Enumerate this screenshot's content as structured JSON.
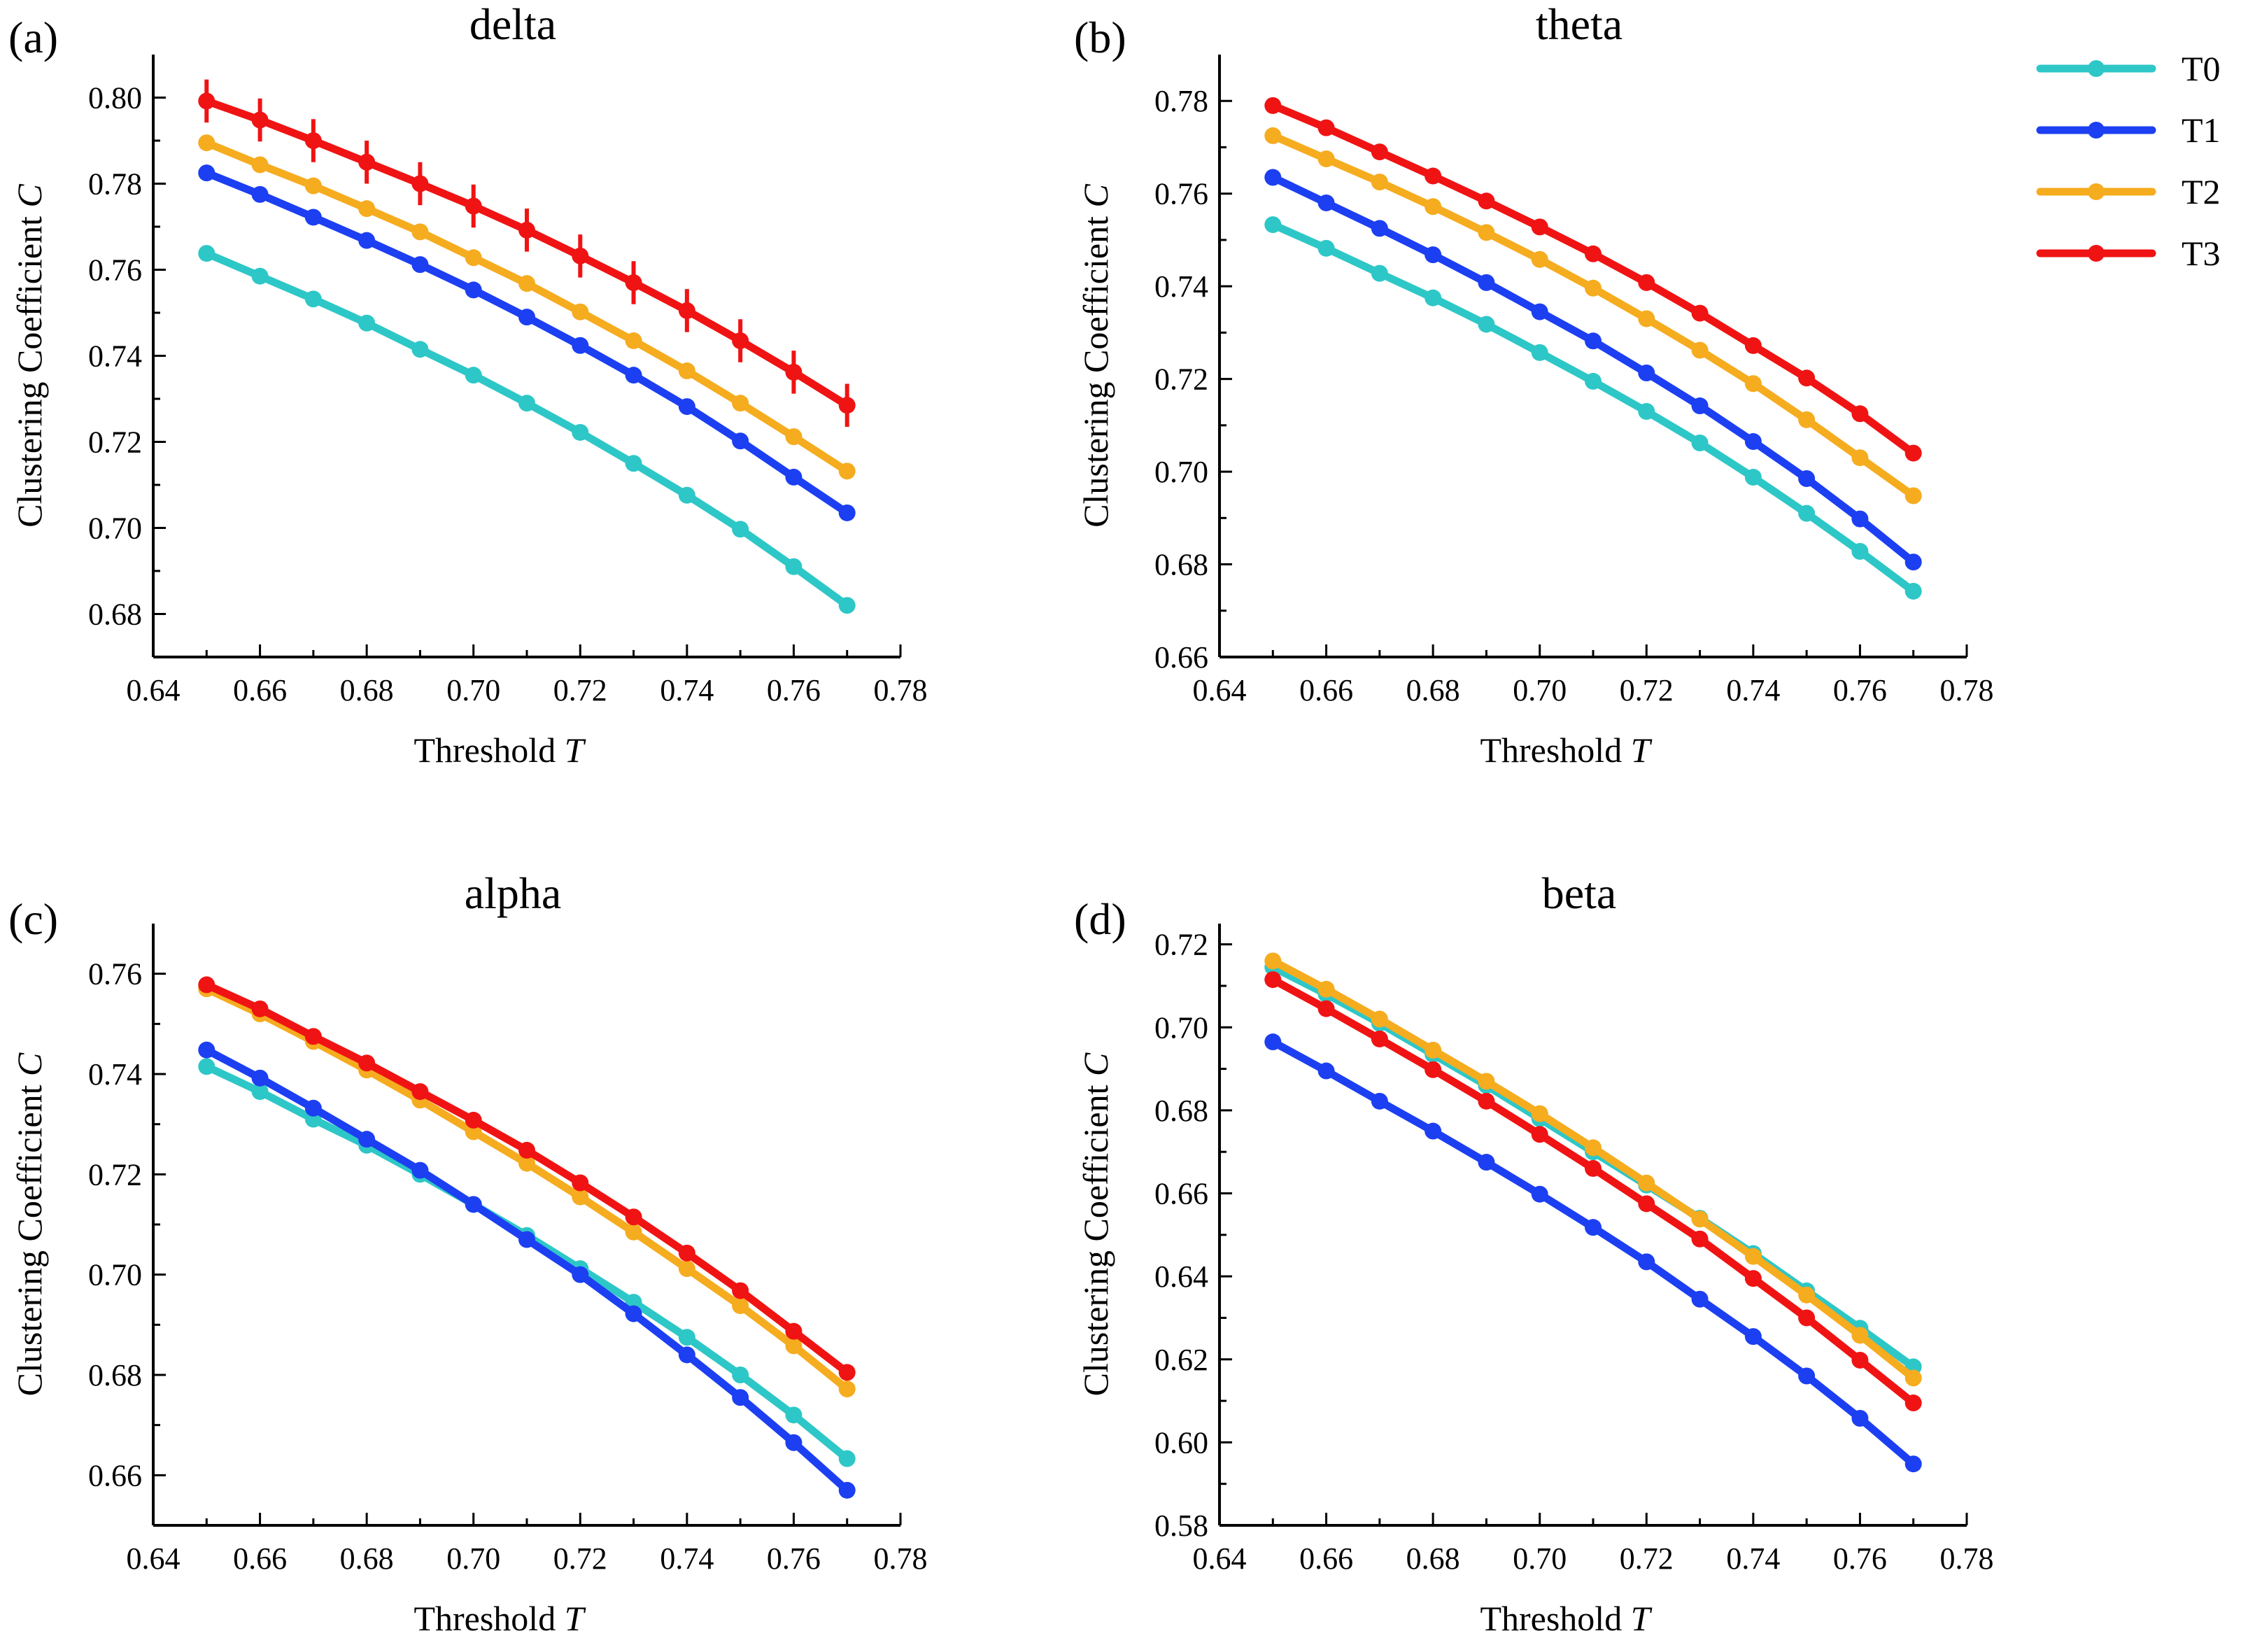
{
  "legend": {
    "position": "top-right",
    "entries": [
      {
        "name": "T0",
        "color": "#2ec7c7"
      },
      {
        "name": "T1",
        "color": "#1c3ff2"
      },
      {
        "name": "T2",
        "color": "#f5ac1f"
      },
      {
        "name": "T3",
        "color": "#f01313"
      }
    ]
  },
  "chart_data": [
    {
      "type": "line",
      "panel_label": "(a)",
      "title": "delta",
      "xlabel": "Threshold",
      "xlabel_var": "T",
      "ylabel": "Clustering Coefficient",
      "ylabel_var": "C",
      "xlim": [
        0.64,
        0.78
      ],
      "ylim": [
        0.67,
        0.81
      ],
      "xticks": [
        "0.64",
        "0.66",
        "0.68",
        "0.70",
        "0.72",
        "0.74",
        "0.76",
        "0.78"
      ],
      "yticks": [
        "0.68",
        "0.70",
        "0.72",
        "0.74",
        "0.76",
        "0.78",
        "0.80"
      ],
      "x": [
        0.65,
        0.66,
        0.67,
        0.68,
        0.69,
        0.7,
        0.71,
        0.72,
        0.73,
        0.74,
        0.75,
        0.76,
        0.77
      ],
      "series": [
        {
          "name": "T0",
          "values": [
            0.7638,
            0.7585,
            0.7532,
            0.7476,
            0.7415,
            0.7355,
            0.729,
            0.7222,
            0.715,
            0.7076,
            0.6997,
            0.691,
            0.682
          ]
        },
        {
          "name": "T1",
          "values": [
            0.7825,
            0.7775,
            0.7722,
            0.7668,
            0.7612,
            0.7553,
            0.749,
            0.7424,
            0.7355,
            0.7282,
            0.7202,
            0.7118,
            0.7035
          ]
        },
        {
          "name": "T2",
          "values": [
            0.7895,
            0.7844,
            0.7795,
            0.7742,
            0.7688,
            0.7628,
            0.7568,
            0.7502,
            0.7435,
            0.7365,
            0.729,
            0.7212,
            0.7132
          ]
        },
        {
          "name": "T3",
          "values": [
            0.7992,
            0.7948,
            0.79,
            0.785,
            0.78,
            0.7748,
            0.7692,
            0.7632,
            0.757,
            0.7505,
            0.7435,
            0.7362,
            0.7285
          ],
          "error": 0.005
        }
      ]
    },
    {
      "type": "line",
      "panel_label": "(b)",
      "title": "theta",
      "xlabel": "Threshold",
      "xlabel_var": "T",
      "ylabel": "Clustering Coefficient",
      "ylabel_var": "C",
      "xlim": [
        0.64,
        0.78
      ],
      "ylim": [
        0.66,
        0.79
      ],
      "xticks": [
        "0.64",
        "0.66",
        "0.68",
        "0.70",
        "0.72",
        "0.74",
        "0.76",
        "0.78"
      ],
      "yticks": [
        "0.66",
        "0.68",
        "0.70",
        "0.72",
        "0.74",
        "0.76",
        "0.78"
      ],
      "x": [
        0.65,
        0.66,
        0.67,
        0.68,
        0.69,
        0.7,
        0.71,
        0.72,
        0.73,
        0.74,
        0.75,
        0.76,
        0.77
      ],
      "series": [
        {
          "name": "T0",
          "values": [
            0.7533,
            0.7482,
            0.7428,
            0.7375,
            0.7318,
            0.7257,
            0.7195,
            0.713,
            0.7062,
            0.6988,
            0.691,
            0.6828,
            0.6742
          ]
        },
        {
          "name": "T1",
          "values": [
            0.7635,
            0.758,
            0.7525,
            0.7468,
            0.7408,
            0.7345,
            0.7282,
            0.7213,
            0.7142,
            0.7065,
            0.6985,
            0.6898,
            0.6805
          ]
        },
        {
          "name": "T2",
          "values": [
            0.7725,
            0.7675,
            0.7625,
            0.7572,
            0.7516,
            0.7458,
            0.7396,
            0.733,
            0.7262,
            0.719,
            0.7112,
            0.703,
            0.6948
          ]
        },
        {
          "name": "T3",
          "values": [
            0.779,
            0.7742,
            0.769,
            0.7638,
            0.7584,
            0.7528,
            0.747,
            0.7408,
            0.7342,
            0.7272,
            0.7202,
            0.7125,
            0.704
          ]
        }
      ]
    },
    {
      "type": "line",
      "panel_label": "(c)",
      "title": "alpha",
      "xlabel": "Threshold",
      "xlabel_var": "T",
      "ylabel": "Clustering Coefficient",
      "ylabel_var": "C",
      "xlim": [
        0.64,
        0.78
      ],
      "ylim": [
        0.65,
        0.77
      ],
      "xticks": [
        "0.64",
        "0.66",
        "0.68",
        "0.70",
        "0.72",
        "0.74",
        "0.76",
        "0.78"
      ],
      "yticks": [
        "0.66",
        "0.68",
        "0.70",
        "0.72",
        "0.74",
        "0.76"
      ],
      "x": [
        0.65,
        0.66,
        0.67,
        0.68,
        0.69,
        0.7,
        0.71,
        0.72,
        0.73,
        0.74,
        0.75,
        0.76,
        0.77
      ],
      "series": [
        {
          "name": "T0",
          "values": [
            0.7415,
            0.7365,
            0.731,
            0.7258,
            0.72,
            0.714,
            0.7078,
            0.7012,
            0.6945,
            0.6875,
            0.68,
            0.672,
            0.6633
          ]
        },
        {
          "name": "T1",
          "values": [
            0.7448,
            0.7392,
            0.7332,
            0.727,
            0.7208,
            0.714,
            0.707,
            0.7,
            0.6922,
            0.684,
            0.6755,
            0.6665,
            0.657
          ]
        },
        {
          "name": "T2",
          "values": [
            0.757,
            0.752,
            0.7465,
            0.7408,
            0.7348,
            0.7285,
            0.7222,
            0.7155,
            0.7085,
            0.7012,
            0.6938,
            0.6858,
            0.6772
          ]
        },
        {
          "name": "T3",
          "values": [
            0.7578,
            0.753,
            0.7475,
            0.7422,
            0.7365,
            0.7308,
            0.7248,
            0.7183,
            0.7115,
            0.7043,
            0.6968,
            0.6887,
            0.6805
          ]
        }
      ]
    },
    {
      "type": "line",
      "panel_label": "(d)",
      "title": "beta",
      "xlabel": "Threshold",
      "xlabel_var": "T",
      "ylabel": "Clustering Coefficient",
      "ylabel_var": "C",
      "xlim": [
        0.64,
        0.78
      ],
      "ylim": [
        0.58,
        0.725
      ],
      "xticks": [
        "0.64",
        "0.66",
        "0.68",
        "0.70",
        "0.72",
        "0.74",
        "0.76",
        "0.78"
      ],
      "yticks": [
        "0.58",
        "0.60",
        "0.62",
        "0.64",
        "0.66",
        "0.68",
        "0.70",
        "0.72"
      ],
      "x": [
        0.65,
        0.66,
        0.67,
        0.68,
        0.69,
        0.7,
        0.71,
        0.72,
        0.73,
        0.74,
        0.75,
        0.76,
        0.77
      ],
      "series": [
        {
          "name": "T0",
          "values": [
            0.7145,
            0.708,
            0.701,
            0.6935,
            0.686,
            0.678,
            0.67,
            0.662,
            0.654,
            0.6455,
            0.6365,
            0.6275,
            0.6182
          ]
        },
        {
          "name": "T1",
          "values": [
            0.6965,
            0.6895,
            0.6822,
            0.675,
            0.6675,
            0.6598,
            0.6518,
            0.6435,
            0.6345,
            0.6255,
            0.616,
            0.6058,
            0.5948
          ]
        },
        {
          "name": "T2",
          "values": [
            0.716,
            0.7092,
            0.702,
            0.6945,
            0.687,
            0.6792,
            0.671,
            0.6625,
            0.6538,
            0.6448,
            0.6355,
            0.6258,
            0.6155
          ]
        },
        {
          "name": "T3",
          "values": [
            0.7115,
            0.7045,
            0.6972,
            0.6898,
            0.6822,
            0.6742,
            0.666,
            0.6575,
            0.649,
            0.6395,
            0.63,
            0.6198,
            0.6095
          ]
        }
      ]
    }
  ]
}
